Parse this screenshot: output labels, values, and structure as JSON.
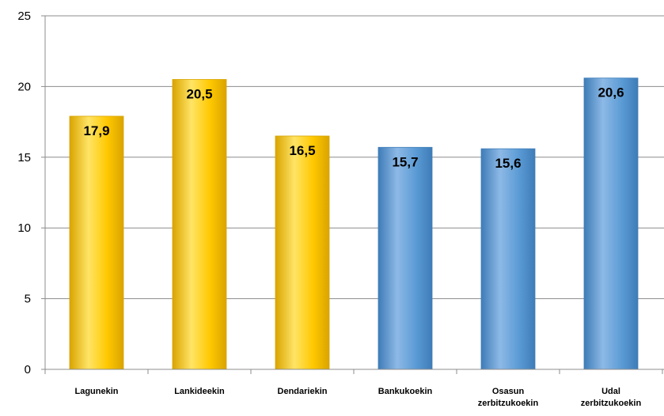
{
  "chart_data": {
    "type": "bar",
    "categories": [
      [
        "Lagunekin"
      ],
      [
        "Lankideekin"
      ],
      [
        "Dendariekin"
      ],
      [
        "Bankukoekin"
      ],
      [
        "Osasun",
        "zerbitzukoekin"
      ],
      [
        "Udal",
        "zerbitzukoekin"
      ]
    ],
    "values": [
      17.9,
      20.5,
      16.5,
      15.7,
      15.6,
      20.6
    ],
    "value_labels": [
      "17,9",
      "20,5",
      "16,5",
      "15,7",
      "15,6",
      "20,6"
    ],
    "ylim": [
      0,
      25
    ],
    "yticks": [
      0,
      5,
      10,
      15,
      20,
      25
    ],
    "grid": true,
    "legend": "none",
    "colors": {
      "group_a": "#FFC800",
      "group_a_light": "#FFE466",
      "group_a_dark": "#D9A400",
      "group_b": "#5B9BD5",
      "group_b_light": "#8DB9E6",
      "group_b_dark": "#3E7CB8"
    },
    "bar_groups": [
      "a",
      "a",
      "a",
      "b",
      "b",
      "b"
    ]
  }
}
